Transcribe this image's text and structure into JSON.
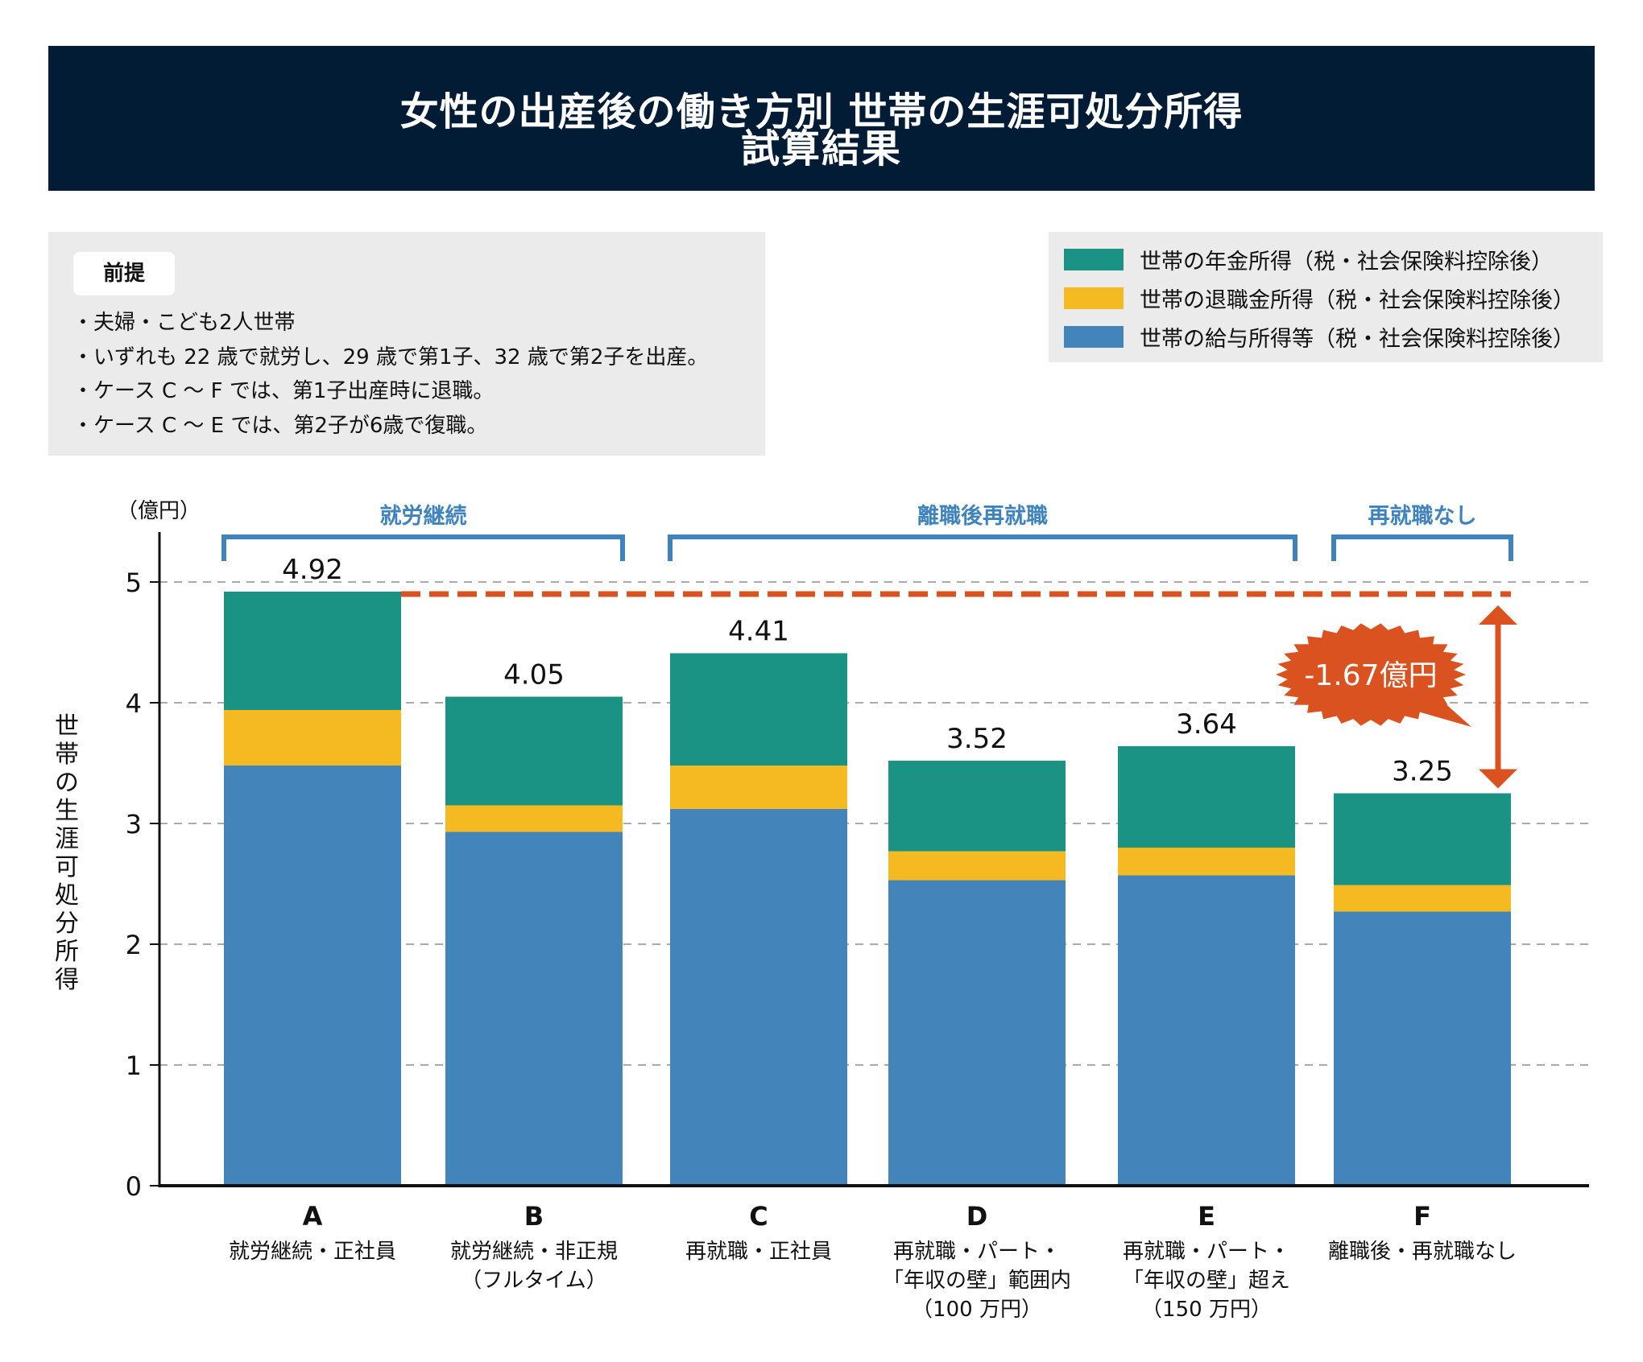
{
  "header": {
    "title_line1": "女性の出産後の働き方別 世帯の生涯可処分所得",
    "title_line2": "試算結果"
  },
  "premise": {
    "tag": "前提",
    "items": [
      "・夫婦・こども2人世帯",
      "・いずれも 22 歳で就労し、29 歳で第1子、32 歳で第2子を出産。",
      "・ケース C ～ F では、第1子出産時に退職。",
      "・ケース C ～ E では、第2子が6歳で復職。"
    ]
  },
  "colors": {
    "pension": "#1a9385",
    "retirement": "#f5b921",
    "salary": "#4385bb",
    "accent": "#d9521f",
    "group": "#3f83bd",
    "title_bg": "#031c35"
  },
  "chart_data": {
    "type": "bar",
    "stacked": true,
    "title": "女性の出産後の働き方別 世帯の生涯可処分所得 試算結果",
    "ylabel": "世帯の生涯可処分所得",
    "yunit": "（億円）",
    "ylim": [
      0,
      5
    ],
    "yticks": [
      0,
      1,
      2,
      3,
      4,
      5
    ],
    "grid": true,
    "legend_position": "top-right",
    "categories": [
      "A",
      "B",
      "C",
      "D",
      "E",
      "F"
    ],
    "category_descriptions": [
      [
        "就労継続・正社員"
      ],
      [
        "就労継続・非正規",
        "（フルタイム）"
      ],
      [
        "再就職・正社員"
      ],
      [
        "再就職・パート・",
        "「年収の壁」範囲内",
        "（100 万円）"
      ],
      [
        "再就職・パート・",
        "「年収の壁」超え",
        "（150 万円）"
      ],
      [
        "離職後・再就職なし"
      ]
    ],
    "series": [
      {
        "name": "世帯の給与所得等（税・社会保険料控除後）",
        "key": "salary",
        "values": [
          3.48,
          2.93,
          3.12,
          2.53,
          2.57,
          2.27
        ]
      },
      {
        "name": "世帯の退職金所得（税・社会保険料控除後）",
        "key": "retirement",
        "values": [
          0.46,
          0.22,
          0.36,
          0.24,
          0.23,
          0.22
        ]
      },
      {
        "name": "世帯の年金所得（税・社会保険料控除後）",
        "key": "pension",
        "values": [
          0.98,
          0.9,
          0.93,
          0.75,
          0.84,
          0.76
        ]
      }
    ],
    "totals": [
      4.92,
      4.05,
      4.41,
      3.52,
      3.64,
      3.25
    ],
    "total_labels": [
      "4.92",
      "4.05",
      "4.41",
      "3.52",
      "3.64",
      "3.25"
    ],
    "legend_order": [
      {
        "name": "世帯の年金所得（税・社会保険料控除後）",
        "key": "pension"
      },
      {
        "name": "世帯の退職金所得（税・社会保険料控除後）",
        "key": "retirement"
      },
      {
        "name": "世帯の給与所得等（税・社会保険料控除後）",
        "key": "salary"
      }
    ],
    "groups": [
      {
        "label": "就労継続",
        "from": 0,
        "to": 1
      },
      {
        "label": "離職後再就職",
        "from": 2,
        "to": 4
      },
      {
        "label": "再就職なし",
        "from": 5,
        "to": 5
      }
    ],
    "annotation": {
      "reference_value": 4.92,
      "target_value": 3.25,
      "label": "-1.67億円",
      "difference": -1.67
    }
  }
}
